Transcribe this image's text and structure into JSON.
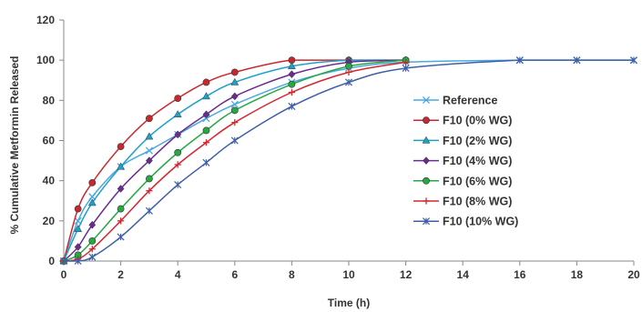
{
  "chart_data": {
    "type": "line",
    "xlabel": "Time (h)",
    "ylabel": "% Cumulative Metformin Released",
    "xlim": [
      0,
      20
    ],
    "ylim": [
      0,
      120
    ],
    "xticks": [
      0,
      2,
      4,
      6,
      8,
      10,
      12,
      14,
      16,
      18,
      20
    ],
    "yticks": [
      0,
      20,
      40,
      60,
      80,
      100,
      120
    ],
    "grid": false,
    "legend_position": "right",
    "series": [
      {
        "name": "Reference",
        "color": "#4aa8e0",
        "marker": "x",
        "x": [
          0,
          0.5,
          1,
          2,
          3,
          4,
          5,
          6,
          8,
          10,
          12,
          16,
          18,
          20
        ],
        "y": [
          0,
          20,
          32,
          47,
          55,
          63,
          71,
          78,
          89,
          96,
          99,
          100,
          100,
          100
        ]
      },
      {
        "name": "F10 (0% WG)",
        "color": "#c8282d",
        "marker": "circle",
        "x": [
          0,
          0.5,
          1,
          2,
          3,
          4,
          5,
          6,
          8,
          10,
          12
        ],
        "y": [
          0,
          26,
          39,
          57,
          71,
          81,
          89,
          94,
          100,
          100,
          100
        ]
      },
      {
        "name": "F10 (2% WG)",
        "color": "#1ea0c8",
        "marker": "triangle",
        "x": [
          0,
          0.5,
          1,
          2,
          3,
          4,
          5,
          6,
          8,
          10,
          12
        ],
        "y": [
          0,
          16,
          29,
          47,
          62,
          73,
          82,
          89,
          97,
          100,
          100
        ]
      },
      {
        "name": "F10 (4% WG)",
        "color": "#6a2c91",
        "marker": "diamond",
        "x": [
          0,
          0.5,
          1,
          2,
          3,
          4,
          5,
          6,
          8,
          10,
          12
        ],
        "y": [
          0,
          7,
          18,
          36,
          50,
          63,
          73,
          82,
          93,
          99,
          100
        ]
      },
      {
        "name": "F10 (6% WG)",
        "color": "#27a844",
        "marker": "circle",
        "x": [
          0,
          0.5,
          1,
          2,
          3,
          4,
          5,
          6,
          8,
          10,
          12
        ],
        "y": [
          0,
          3,
          10,
          26,
          41,
          54,
          65,
          75,
          88,
          97,
          100
        ]
      },
      {
        "name": "F10 (8% WG)",
        "color": "#d8242e",
        "marker": "plus",
        "x": [
          0,
          0.5,
          1,
          2,
          3,
          4,
          5,
          6,
          8,
          10,
          12
        ],
        "y": [
          0,
          1,
          6,
          20,
          35,
          48,
          59,
          69,
          84,
          94,
          99
        ]
      },
      {
        "name": "F10 (10% WG)",
        "color": "#3f5fa8",
        "marker": "asterisk",
        "x": [
          0,
          0.5,
          1,
          2,
          3,
          4,
          5,
          6,
          8,
          10,
          12,
          16,
          18,
          20
        ],
        "y": [
          0,
          0,
          2,
          12,
          25,
          38,
          49,
          60,
          77,
          89,
          96,
          100,
          100,
          100
        ]
      }
    ]
  }
}
